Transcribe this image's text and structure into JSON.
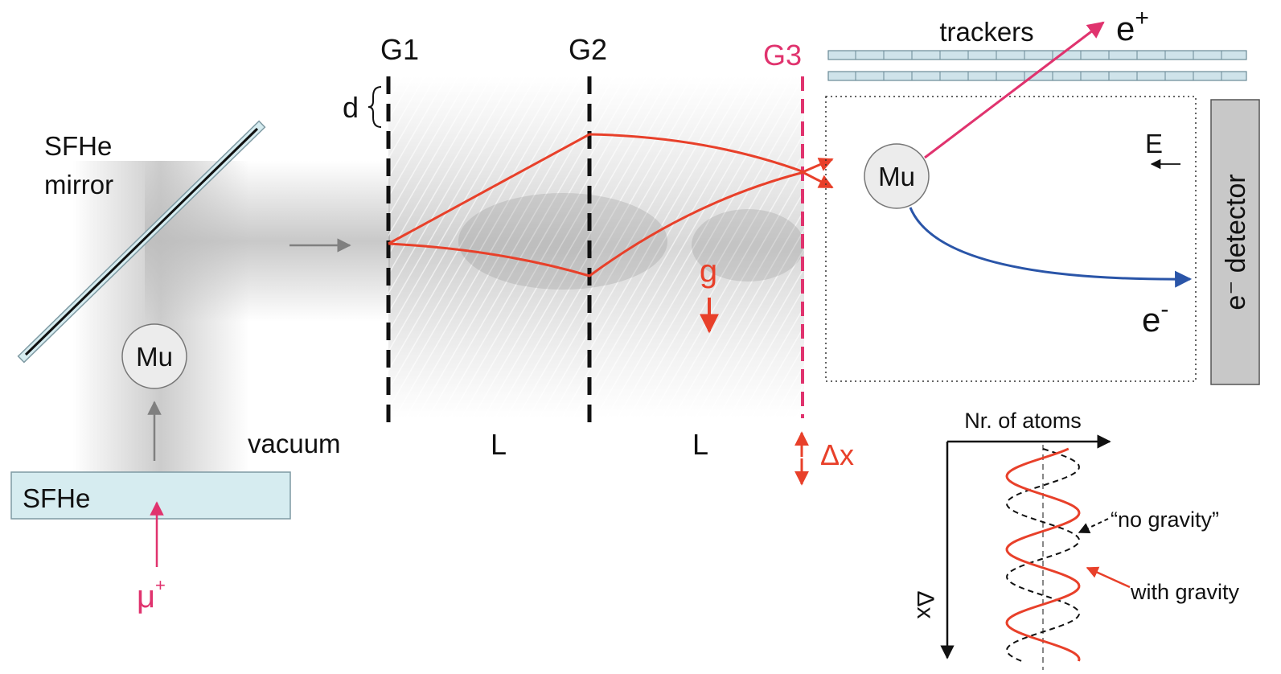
{
  "labels": {
    "sfhe_mirror_line1": "SFHe",
    "sfhe_mirror_line2": "mirror",
    "mu_source": "Mu",
    "sfhe_source": "SFHe",
    "muon": "μ",
    "muon_charge": "+",
    "vacuum": "vacuum",
    "g1": "G1",
    "g2": "G2",
    "g3": "G3",
    "d": "d",
    "L1": "L",
    "L2": "L",
    "delta_x": "Δx",
    "gravity": "g",
    "trackers": "trackers",
    "positron": "e",
    "positron_sup": "+",
    "mu_decay": "Mu",
    "field": "E",
    "electron": "e",
    "electron_sup": "-",
    "detector": "e⁻ detector",
    "nr_atoms": "Nr. of atoms",
    "axis_delta_x": "Δx",
    "no_gravity": "“no gravity”",
    "with_gravity": "with gravity"
  },
  "colors": {
    "red": "#e8402a",
    "magenta": "#e0336e",
    "blue": "#2a55a8",
    "sfhe_fill": "#d6ecf0",
    "tracker_fill": "#cfe3ea",
    "detector_fill": "#c8c8c8",
    "mu_fill": "#ececec",
    "gray_arrow": "#808080"
  }
}
